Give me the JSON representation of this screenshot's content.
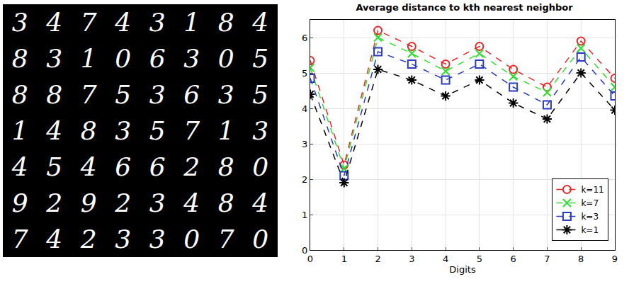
{
  "image_grid": {
    "rows": [
      [
        "3",
        "4",
        "7",
        "4",
        "3",
        "1",
        "8",
        "4"
      ],
      [
        "8",
        "3",
        "1",
        "0",
        "6",
        "3",
        "0",
        "5"
      ],
      [
        "8",
        "8",
        "7",
        "5",
        "3",
        "6",
        "3",
        "5"
      ],
      [
        "1",
        "4",
        "8",
        "3",
        "5",
        "7",
        "1",
        "3"
      ],
      [
        "4",
        "5",
        "4",
        "6",
        "6",
        "2",
        "8",
        "0"
      ],
      [
        "9",
        "2",
        "9",
        "2",
        "3",
        "4",
        "8",
        "4"
      ],
      [
        "7",
        "4",
        "2",
        "3",
        "3",
        "0",
        "7",
        "0"
      ]
    ]
  },
  "chart_data": {
    "type": "line",
    "title": "Average distance to kth nearest neighbor",
    "x_label": "Digits",
    "x": [
      0,
      1,
      2,
      3,
      4,
      5,
      6,
      7,
      8,
      9
    ],
    "series": [
      {
        "name": "k=11",
        "color": "#e8272a",
        "marker": "circle",
        "line_style": "dashed",
        "values": [
          5.35,
          2.4,
          6.2,
          5.75,
          5.25,
          5.75,
          5.1,
          4.6,
          5.9,
          4.85
        ]
      },
      {
        "name": "k=7",
        "color": "#33dd33",
        "marker": "x",
        "line_style": "dashed",
        "values": [
          5.15,
          2.3,
          6.0,
          5.55,
          5.05,
          5.55,
          4.9,
          4.45,
          5.7,
          4.6
        ]
      },
      {
        "name": "k=3",
        "color": "#2a3bbf",
        "marker": "square",
        "line_style": "dashed",
        "values": [
          4.85,
          2.1,
          5.6,
          5.25,
          4.8,
          5.25,
          4.6,
          4.1,
          5.45,
          4.35
        ]
      },
      {
        "name": "k=1",
        "color": "#000000",
        "marker": "asterisk",
        "line_style": "dashed",
        "values": [
          4.4,
          1.9,
          5.1,
          4.8,
          4.35,
          4.8,
          4.15,
          3.7,
          5.0,
          3.95
        ]
      }
    ],
    "xlim": [
      0,
      9
    ],
    "xticks": [
      0,
      1,
      2,
      3,
      4,
      5,
      6,
      7,
      8,
      9
    ],
    "ylim": [
      0,
      6.5
    ],
    "yticks": [
      0,
      1,
      2,
      3,
      4,
      5,
      6
    ],
    "grid": true,
    "legend": "lower right"
  }
}
